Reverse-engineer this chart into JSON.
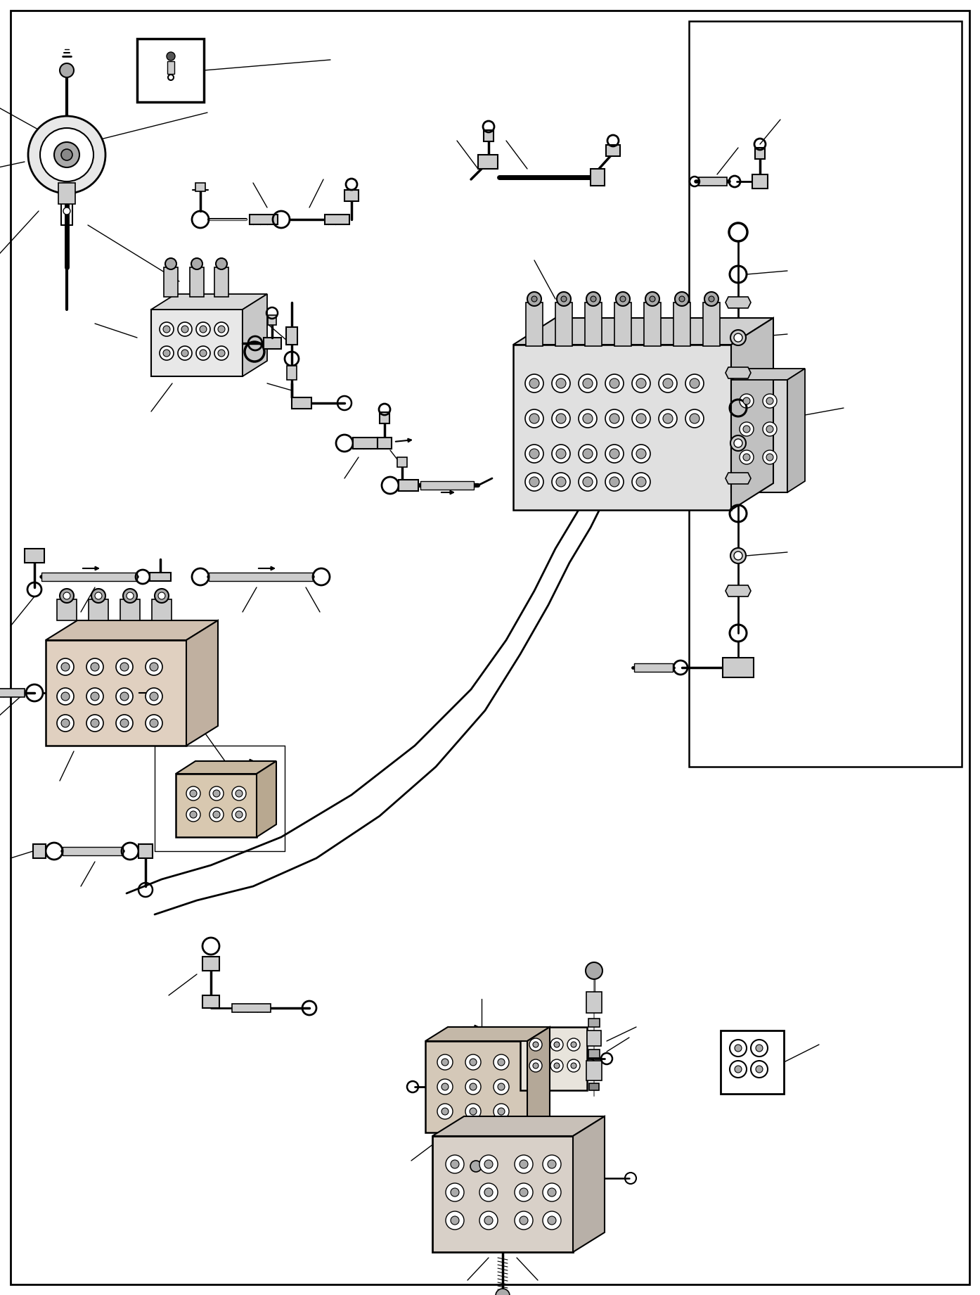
{
  "figsize": [
    13.94,
    18.41
  ],
  "dpi": 100,
  "bg": "#ffffff",
  "lc": "#000000",
  "gray1": "#cccccc",
  "gray2": "#aaaaaa",
  "gray3": "#888888",
  "gray4": "#555555",
  "tan": "#c8b89a",
  "tan2": "#d4c4a8"
}
